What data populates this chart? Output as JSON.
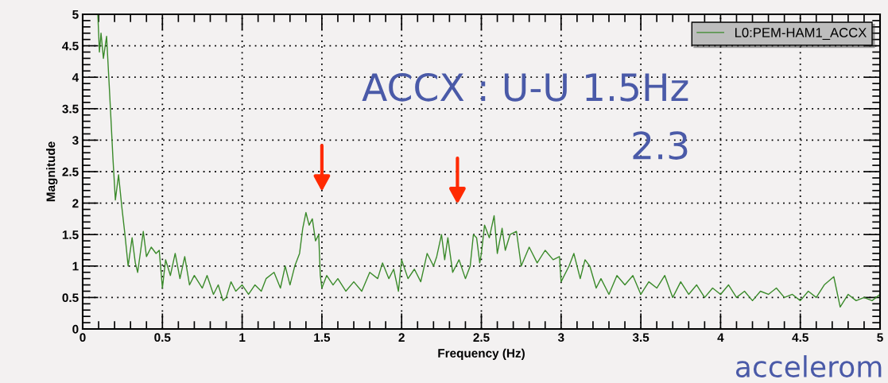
{
  "chart_data": {
    "type": "line",
    "xlabel": "Frequency (Hz)",
    "ylabel": "Magnitude",
    "xlim": [
      0,
      5
    ],
    "ylim": [
      0,
      5
    ],
    "xticks": [
      0,
      0.5,
      1,
      1.5,
      2,
      2.5,
      3,
      3.5,
      4,
      4.5,
      5
    ],
    "yticks": [
      0,
      0.5,
      1,
      1.5,
      2,
      2.5,
      3,
      3.5,
      4,
      4.5,
      5
    ],
    "grid": true,
    "legend": "top right",
    "marker": "none",
    "line_style": "solid",
    "series": [
      {
        "name": "L0:PEM-HAM1_ACCX",
        "color": "#3a8a2a",
        "x": [
          0.095,
          0.105,
          0.115,
          0.13,
          0.15,
          0.17,
          0.19,
          0.205,
          0.225,
          0.245,
          0.265,
          0.285,
          0.31,
          0.33,
          0.345,
          0.38,
          0.4,
          0.43,
          0.46,
          0.48,
          0.5,
          0.52,
          0.55,
          0.58,
          0.61,
          0.64,
          0.67,
          0.7,
          0.75,
          0.78,
          0.82,
          0.85,
          0.88,
          0.9,
          0.93,
          0.96,
          1.0,
          1.04,
          1.08,
          1.12,
          1.15,
          1.2,
          1.24,
          1.27,
          1.3,
          1.33,
          1.36,
          1.38,
          1.4,
          1.42,
          1.44,
          1.46,
          1.48,
          1.49,
          1.5,
          1.53,
          1.57,
          1.6,
          1.65,
          1.7,
          1.75,
          1.8,
          1.85,
          1.88,
          1.92,
          1.95,
          1.98,
          2.0,
          2.04,
          2.08,
          2.12,
          2.16,
          2.2,
          2.22,
          2.25,
          2.27,
          2.29,
          2.32,
          2.36,
          2.4,
          2.43,
          2.45,
          2.47,
          2.49,
          2.5,
          2.52,
          2.55,
          2.58,
          2.6,
          2.63,
          2.65,
          2.68,
          2.72,
          2.75,
          2.8,
          2.85,
          2.9,
          2.95,
          2.99,
          3.0,
          3.05,
          3.08,
          3.12,
          3.15,
          3.18,
          3.22,
          3.25,
          3.3,
          3.35,
          3.4,
          3.45,
          3.5,
          3.55,
          3.6,
          3.65,
          3.7,
          3.75,
          3.8,
          3.85,
          3.9,
          3.95,
          4.0,
          4.05,
          4.1,
          4.15,
          4.2,
          4.25,
          4.3,
          4.35,
          4.4,
          4.45,
          4.5,
          4.55,
          4.6,
          4.65,
          4.71,
          4.75,
          4.8,
          4.85,
          4.9,
          4.95,
          5.0
        ],
        "values": [
          5.0,
          4.4,
          4.7,
          4.3,
          4.65,
          3.7,
          2.7,
          2.05,
          2.45,
          1.95,
          1.5,
          1.0,
          1.45,
          1.05,
          0.9,
          1.55,
          1.15,
          1.3,
          1.2,
          1.25,
          0.65,
          1.1,
          0.85,
          1.2,
          0.8,
          1.15,
          0.7,
          0.85,
          0.65,
          0.85,
          0.55,
          0.7,
          0.45,
          0.5,
          0.75,
          0.6,
          0.7,
          0.55,
          0.7,
          0.6,
          0.8,
          0.9,
          0.65,
          1.0,
          0.7,
          1.0,
          1.2,
          1.6,
          1.85,
          1.65,
          1.75,
          1.4,
          1.5,
          0.85,
          0.65,
          0.85,
          0.7,
          0.8,
          0.6,
          0.75,
          0.6,
          0.9,
          0.8,
          1.05,
          0.8,
          0.95,
          0.6,
          1.1,
          0.8,
          0.95,
          0.75,
          1.2,
          1.0,
          1.15,
          1.5,
          1.1,
          1.45,
          0.9,
          1.1,
          0.8,
          1.0,
          1.5,
          1.45,
          1.05,
          1.2,
          1.65,
          1.45,
          1.8,
          1.2,
          1.6,
          1.25,
          1.5,
          1.55,
          1.0,
          1.3,
          1.05,
          1.25,
          1.1,
          1.15,
          0.75,
          1.0,
          1.2,
          0.8,
          1.1,
          1.0,
          0.65,
          0.8,
          0.55,
          0.85,
          0.7,
          0.85,
          0.55,
          0.75,
          0.65,
          0.85,
          0.5,
          0.75,
          0.55,
          0.7,
          0.5,
          0.65,
          0.55,
          0.7,
          0.5,
          0.6,
          0.45,
          0.6,
          0.55,
          0.65,
          0.5,
          0.55,
          0.45,
          0.6,
          0.5,
          0.7,
          0.83,
          0.35,
          0.55,
          0.45,
          0.5,
          0.45,
          0.55
        ]
      }
    ],
    "annotations": [
      "ACCX : U-U 1.5Hz",
      "2.3",
      "accelerom"
    ]
  }
}
